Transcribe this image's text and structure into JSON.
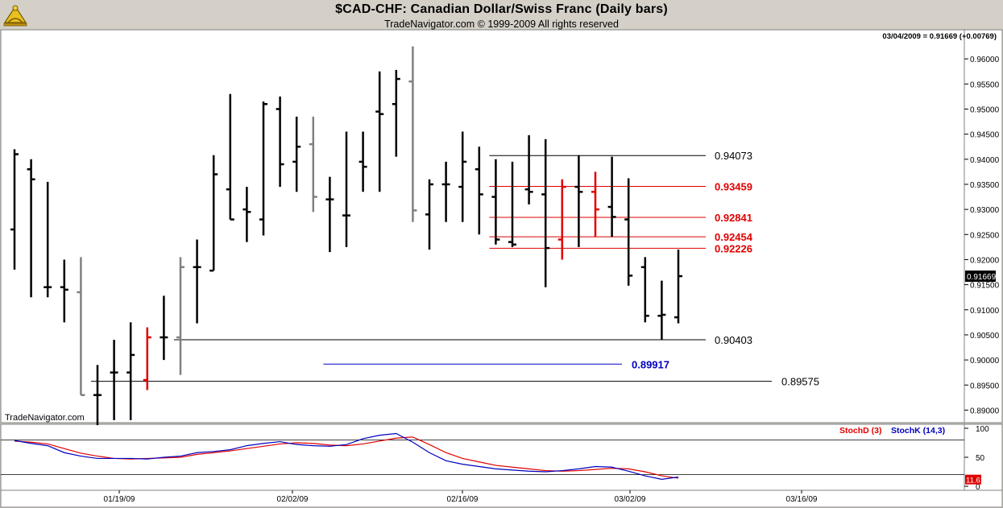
{
  "header": {
    "title": "$CAD-CHF:  Canadian Dollar/Swiss Franc  (Daily bars)",
    "subtitle": "TradeNavigator.com © 1999-2009 All rights reserved",
    "quote": "03/04/2009 = 0.91669 (+0.00769)",
    "watermark": "TradeNavigator.com",
    "logo_icon": "sextant-icon"
  },
  "chart_data": [
    {
      "type": "ohlc",
      "title": "$CAD-CHF:  Canadian Dollar/Swiss Franc  (Daily bars)",
      "ylim": [
        0.8875,
        0.9658
      ],
      "y_ticks": [
        "0.96000",
        "0.95500",
        "0.95000",
        "0.94500",
        "0.94000",
        "0.93500",
        "0.93000",
        "0.92500",
        "0.92000",
        "0.91500",
        "0.91000",
        "0.90500",
        "0.90000",
        "0.89500",
        "0.89000"
      ],
      "x_ticks": [
        "01/19/09",
        "02/02/09",
        "02/16/09",
        "03/02/09",
        "03/16/09"
      ],
      "last_price_label": "0.91669",
      "colors": {
        "up": "#000000",
        "down": "#000000",
        "gray": "#808080",
        "red": "#e00000"
      },
      "bars": [
        {
          "date": "01/05/09",
          "o": 0.926,
          "h": 0.942,
          "l": 0.918,
          "c": 0.941,
          "color": "black"
        },
        {
          "date": "01/06/09",
          "o": 0.938,
          "h": 0.94,
          "l": 0.9125,
          "c": 0.936,
          "color": "black"
        },
        {
          "date": "01/07/09",
          "o": 0.9145,
          "h": 0.9355,
          "l": 0.9125,
          "c": 0.9145,
          "color": "black"
        },
        {
          "date": "01/08/09",
          "o": 0.9145,
          "h": 0.92,
          "l": 0.9075,
          "c": 0.914,
          "color": "black"
        },
        {
          "date": "01/09/09",
          "o": 0.9135,
          "h": 0.9205,
          "l": 0.893,
          "c": 0.893,
          "color": "gray"
        },
        {
          "date": "01/12/09",
          "o": 0.893,
          "h": 0.899,
          "l": 0.887,
          "c": 0.893,
          "color": "black"
        },
        {
          "date": "01/13/09",
          "o": 0.8975,
          "h": 0.904,
          "l": 0.888,
          "c": 0.8975,
          "color": "black"
        },
        {
          "date": "01/14/09",
          "o": 0.8975,
          "h": 0.9075,
          "l": 0.888,
          "c": 0.901,
          "color": "black"
        },
        {
          "date": "01/15/09",
          "o": 0.896,
          "h": 0.9065,
          "l": 0.894,
          "c": 0.9045,
          "color": "red"
        },
        {
          "date": "01/16/09",
          "o": 0.9045,
          "h": 0.9128,
          "l": 0.9,
          "c": 0.9045,
          "color": "black"
        },
        {
          "date": "01/19/09",
          "o": 0.9045,
          "h": 0.9205,
          "l": 0.897,
          "c": 0.9185,
          "color": "gray"
        },
        {
          "date": "01/20/09",
          "o": 0.9185,
          "h": 0.924,
          "l": 0.9073,
          "c": 0.9185,
          "color": "black"
        },
        {
          "date": "01/21/09",
          "o": 0.9178,
          "h": 0.9408,
          "l": 0.9178,
          "c": 0.937,
          "color": "black"
        },
        {
          "date": "01/22/09",
          "o": 0.934,
          "h": 0.953,
          "l": 0.928,
          "c": 0.928,
          "color": "black"
        },
        {
          "date": "01/23/09",
          "o": 0.93,
          "h": 0.9345,
          "l": 0.9235,
          "c": 0.9295,
          "color": "black"
        },
        {
          "date": "01/26/09",
          "o": 0.928,
          "h": 0.9515,
          "l": 0.9248,
          "c": 0.951,
          "color": "black"
        },
        {
          "date": "01/27/09",
          "o": 0.95,
          "h": 0.9525,
          "l": 0.9345,
          "c": 0.939,
          "color": "black"
        },
        {
          "date": "01/28/09",
          "o": 0.9395,
          "h": 0.9485,
          "l": 0.9335,
          "c": 0.9425,
          "color": "black"
        },
        {
          "date": "01/29/09",
          "o": 0.943,
          "h": 0.9485,
          "l": 0.9295,
          "c": 0.9325,
          "color": "gray"
        },
        {
          "date": "01/30/09",
          "o": 0.932,
          "h": 0.9365,
          "l": 0.9215,
          "c": 0.932,
          "color": "black"
        },
        {
          "date": "02/02/09",
          "o": 0.9288,
          "h": 0.9455,
          "l": 0.9225,
          "c": 0.9288,
          "color": "black"
        },
        {
          "date": "02/03/09",
          "o": 0.9395,
          "h": 0.9455,
          "l": 0.9335,
          "c": 0.9385,
          "color": "black"
        },
        {
          "date": "02/04/09",
          "o": 0.9495,
          "h": 0.9575,
          "l": 0.9335,
          "c": 0.949,
          "color": "black"
        },
        {
          "date": "02/05/09",
          "o": 0.951,
          "h": 0.9578,
          "l": 0.9405,
          "c": 0.956,
          "color": "black"
        },
        {
          "date": "02/06/09",
          "o": 0.9555,
          "h": 0.9625,
          "l": 0.9275,
          "c": 0.9298,
          "color": "gray"
        },
        {
          "date": "02/09/09",
          "o": 0.929,
          "h": 0.936,
          "l": 0.922,
          "c": 0.935,
          "color": "black"
        },
        {
          "date": "02/10/09",
          "o": 0.935,
          "h": 0.9395,
          "l": 0.9275,
          "c": 0.935,
          "color": "black"
        },
        {
          "date": "02/11/09",
          "o": 0.9345,
          "h": 0.9455,
          "l": 0.9275,
          "c": 0.9395,
          "color": "black"
        },
        {
          "date": "02/12/09",
          "o": 0.938,
          "h": 0.9425,
          "l": 0.925,
          "c": 0.933,
          "color": "black"
        },
        {
          "date": "02/13/09",
          "o": 0.9325,
          "h": 0.94,
          "l": 0.923,
          "c": 0.924,
          "color": "black"
        },
        {
          "date": "02/16/09",
          "o": 0.9235,
          "h": 0.9395,
          "l": 0.9225,
          "c": 0.923,
          "color": "black"
        },
        {
          "date": "02/17/09",
          "o": 0.934,
          "h": 0.9448,
          "l": 0.931,
          "c": 0.9335,
          "color": "black"
        },
        {
          "date": "02/18/09",
          "o": 0.933,
          "h": 0.944,
          "l": 0.9145,
          "c": 0.9223,
          "color": "black"
        },
        {
          "date": "02/19/09",
          "o": 0.924,
          "h": 0.936,
          "l": 0.92,
          "c": 0.9345,
          "color": "red"
        },
        {
          "date": "02/20/09",
          "o": 0.9345,
          "h": 0.9408,
          "l": 0.9225,
          "c": 0.9335,
          "color": "black"
        },
        {
          "date": "02/23/09",
          "o": 0.9335,
          "h": 0.9375,
          "l": 0.9245,
          "c": 0.93,
          "color": "red"
        },
        {
          "date": "02/24/09",
          "o": 0.9305,
          "h": 0.9405,
          "l": 0.9245,
          "c": 0.9285,
          "color": "black"
        },
        {
          "date": "02/25/09",
          "o": 0.928,
          "h": 0.9362,
          "l": 0.9148,
          "c": 0.9168,
          "color": "black"
        },
        {
          "date": "02/26/09",
          "o": 0.9185,
          "h": 0.9205,
          "l": 0.9075,
          "c": 0.9088,
          "color": "black"
        },
        {
          "date": "02/27/09",
          "o": 0.9088,
          "h": 0.9158,
          "l": 0.904,
          "c": 0.909,
          "color": "black"
        },
        {
          "date": "03/02/09",
          "o": 0.9085,
          "h": 0.922,
          "l": 0.9073,
          "c": 0.9167,
          "color": "black"
        }
      ],
      "levels": [
        {
          "value": "0.94073",
          "y": 0.94073,
          "from": "02/13/09",
          "color": "black"
        },
        {
          "value": "0.93459",
          "y": 0.93459,
          "from": "02/13/09",
          "color": "red"
        },
        {
          "value": "0.92841",
          "y": 0.92841,
          "from": "02/13/09",
          "color": "red"
        },
        {
          "value": "0.92454",
          "y": 0.92454,
          "from": "02/13/09",
          "color": "red"
        },
        {
          "value": "0.92226",
          "y": 0.92226,
          "from": "02/13/09",
          "color": "red"
        },
        {
          "value": "0.90403",
          "y": 0.90403,
          "from": "01/19/09",
          "color": "black"
        },
        {
          "value": "0.89917",
          "y": 0.89917,
          "from": "01/30/09",
          "color": "blue"
        },
        {
          "value": "0.89575",
          "y": 0.89575,
          "from": "01/12/09",
          "color": "black"
        }
      ]
    },
    {
      "type": "line",
      "legend": [
        {
          "name": "StochD (3)",
          "color": "#e00000"
        },
        {
          "name": "StochK (14,3)",
          "color": "#0000c0"
        }
      ],
      "ylim": [
        0,
        100
      ],
      "y_ticks": [
        "100",
        "50",
        "0"
      ],
      "reference_lines": [
        80,
        20
      ],
      "last_value_label": "11.61",
      "series": [
        {
          "name": "StochD (3)",
          "color": "#e00000",
          "values": [
            78,
            76,
            73,
            65,
            57,
            52,
            48,
            47,
            48,
            49,
            50,
            55,
            58,
            61,
            65,
            69,
            73,
            75,
            74,
            71,
            70,
            73,
            78,
            83,
            85,
            72,
            58,
            48,
            42,
            36,
            33,
            30,
            27,
            26,
            27,
            29,
            31,
            30,
            25,
            18,
            14
          ]
        },
        {
          "name": "StochK (14,3)",
          "color": "#0000c0",
          "values": [
            79,
            74,
            70,
            58,
            52,
            48,
            48,
            48,
            47,
            50,
            52,
            58,
            60,
            63,
            70,
            74,
            77,
            72,
            70,
            69,
            72,
            82,
            88,
            91,
            76,
            58,
            44,
            38,
            34,
            30,
            28,
            26,
            25,
            27,
            30,
            34,
            33,
            26,
            18,
            12,
            16
          ]
        }
      ]
    }
  ]
}
